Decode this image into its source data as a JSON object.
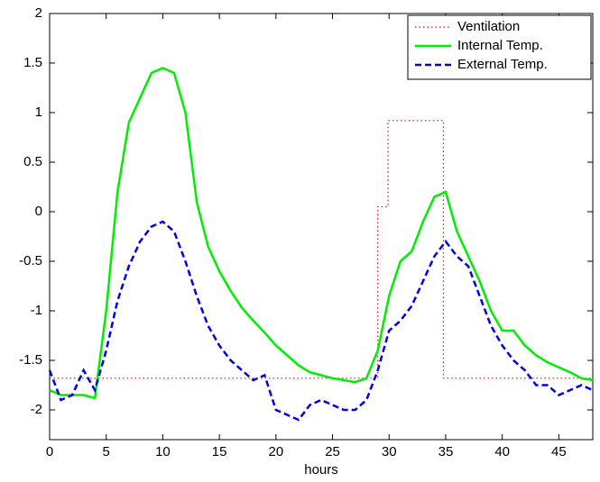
{
  "chart_data": {
    "type": "line",
    "xlabel": "hours",
    "x": [
      0,
      1,
      2,
      3,
      4,
      5,
      6,
      7,
      8,
      9,
      10,
      11,
      12,
      13,
      14,
      15,
      16,
      17,
      18,
      19,
      20,
      21,
      22,
      23,
      24,
      25,
      26,
      27,
      28,
      29,
      30,
      31,
      32,
      33,
      34,
      35,
      36,
      37,
      38,
      39,
      40,
      41,
      42,
      43,
      44,
      45,
      46,
      47,
      48
    ],
    "series": [
      {
        "name": "Ventilation",
        "color": "#ff0000",
        "style": "dotted",
        "x": [
          0,
          29,
          29,
          29.9,
          29.9,
          34.8,
          34.8,
          48
        ],
        "values": [
          -1.68,
          -1.68,
          0.05,
          0.05,
          0.92,
          0.92,
          -1.68,
          -1.68
        ]
      },
      {
        "name": "Internal Temp.",
        "color": "#00ee00",
        "style": "solid",
        "values": [
          -1.8,
          -1.85,
          -1.85,
          -1.85,
          -1.88,
          -1.0,
          0.2,
          0.9,
          1.15,
          1.4,
          1.45,
          1.4,
          1.0,
          0.1,
          -0.35,
          -0.6,
          -0.8,
          -0.97,
          -1.1,
          -1.22,
          -1.35,
          -1.45,
          -1.55,
          -1.62,
          -1.65,
          -1.68,
          -1.7,
          -1.72,
          -1.68,
          -1.4,
          -0.85,
          -0.5,
          -0.4,
          -0.1,
          0.15,
          0.2,
          -0.2,
          -0.45,
          -0.7,
          -1.0,
          -1.2,
          -1.2,
          -1.35,
          -1.45,
          -1.52,
          -1.57,
          -1.62,
          -1.68,
          -1.7
        ]
      },
      {
        "name": "External Temp.",
        "color": "#0000ee",
        "style": "dashed",
        "values": [
          -1.6,
          -1.9,
          -1.85,
          -1.6,
          -1.8,
          -1.4,
          -0.9,
          -0.55,
          -0.3,
          -0.15,
          -0.1,
          -0.2,
          -0.5,
          -0.85,
          -1.15,
          -1.35,
          -1.5,
          -1.6,
          -1.7,
          -1.65,
          -2.0,
          -2.05,
          -2.1,
          -1.95,
          -1.9,
          -1.95,
          -2.0,
          -2.0,
          -1.9,
          -1.6,
          -1.2,
          -1.1,
          -0.95,
          -0.7,
          -0.45,
          -0.3,
          -0.45,
          -0.55,
          -0.85,
          -1.15,
          -1.35,
          -1.5,
          -1.6,
          -1.75,
          -1.75,
          -1.85,
          -1.8,
          -1.75,
          -1.8
        ]
      }
    ],
    "xlim": [
      0,
      48
    ],
    "xticks": [
      0,
      5,
      10,
      15,
      20,
      25,
      30,
      35,
      40,
      45
    ],
    "ylim": [
      -2.3,
      2
    ],
    "yticks": [
      -2,
      -1.5,
      -1,
      -0.5,
      0,
      0.5,
      1,
      1.5,
      2
    ],
    "grid": false,
    "legend": "upper right"
  }
}
